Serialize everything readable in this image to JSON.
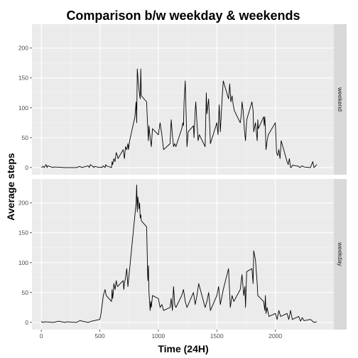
{
  "chart_data": {
    "type": "line",
    "title": "Comparison b/w weekday & weekends",
    "xlabel": "Time (24H)",
    "ylabel": "Average steps",
    "xlim": [
      -80,
      2500
    ],
    "ylim": [
      -12,
      240
    ],
    "x_ticks": [
      0,
      500,
      1000,
      1500,
      2000
    ],
    "y_ticks": [
      0,
      50,
      100,
      150,
      200
    ],
    "grid": true,
    "legend": "none",
    "line_color": "#000000",
    "panel_background": "#ebebeb",
    "strip_background": "#d9d9d9",
    "facets": [
      {
        "strip": "weekend",
        "x": [
          0,
          15,
          25,
          40,
          50,
          55,
          100,
          110,
          200,
          300,
          330,
          345,
          400,
          410,
          420,
          450,
          455,
          500,
          510,
          520,
          530,
          545,
          550,
          555,
          600,
          605,
          610,
          620,
          630,
          640,
          650,
          655,
          700,
          710,
          715,
          720,
          730,
          740,
          745,
          755,
          800,
          810,
          815,
          820,
          830,
          835,
          845,
          850,
          855,
          900,
          905,
          915,
          920,
          930,
          940,
          950,
          1000,
          1015,
          1030,
          1045,
          1100,
          1110,
          1120,
          1130,
          1140,
          1150,
          1200,
          1210,
          1215,
          1220,
          1230,
          1245,
          1255,
          1300,
          1305,
          1315,
          1320,
          1330,
          1340,
          1350,
          1400,
          1410,
          1415,
          1430,
          1445,
          1500,
          1510,
          1520,
          1530,
          1545,
          1555,
          1600,
          1610,
          1620,
          1630,
          1640,
          1650,
          1700,
          1710,
          1715,
          1725,
          1735,
          1745,
          1755,
          1800,
          1810,
          1815,
          1830,
          1845,
          1850,
          1855,
          1900,
          1905,
          1910,
          1915,
          1920,
          1930,
          1940,
          2000,
          2010,
          2020,
          2030,
          2040,
          2050,
          2100,
          2110,
          2120,
          2130,
          2140,
          2145,
          2200,
          2210,
          2230,
          2245,
          2300,
          2320,
          2330,
          2355
        ],
        "y": [
          0,
          2,
          0,
          5,
          0,
          3,
          0,
          1,
          0,
          0,
          2,
          0,
          3,
          0,
          5,
          0,
          2,
          0,
          1,
          0,
          3,
          0,
          5,
          3,
          0,
          10,
          5,
          15,
          10,
          25,
          20,
          15,
          30,
          15,
          25,
          35,
          30,
          40,
          30,
          45,
          85,
          110,
          75,
          165,
          140,
          130,
          115,
          165,
          120,
          110,
          85,
          45,
          70,
          50,
          35,
          65,
          55,
          75,
          55,
          30,
          40,
          80,
          55,
          35,
          40,
          35,
          65,
          75,
          70,
          110,
          145,
          35,
          60,
          70,
          50,
          95,
          110,
          75,
          45,
          55,
          35,
          125,
          90,
          115,
          40,
          75,
          55,
          105,
          60,
          115,
          145,
          115,
          140,
          110,
          120,
          105,
          95,
          75,
          90,
          110,
          95,
          65,
          45,
          80,
          110,
          95,
          60,
          75,
          45,
          80,
          65,
          85,
          70,
          85,
          65,
          30,
          45,
          55,
          75,
          25,
          20,
          30,
          15,
          45,
          10,
          5,
          15,
          0,
          1,
          4,
          2,
          0,
          3,
          1,
          0,
          10,
          0,
          5
        ]
      },
      {
        "strip": "weekday",
        "x": [
          0,
          10,
          30,
          100,
          150,
          200,
          220,
          300,
          330,
          400,
          430,
          500,
          510,
          520,
          530,
          545,
          550,
          555,
          600,
          605,
          610,
          615,
          620,
          630,
          640,
          650,
          700,
          705,
          710,
          720,
          730,
          740,
          745,
          750,
          800,
          810,
          815,
          820,
          825,
          835,
          840,
          845,
          850,
          855,
          900,
          910,
          915,
          920,
          930,
          935,
          940,
          950,
          1000,
          1015,
          1030,
          1045,
          1100,
          1110,
          1120,
          1130,
          1140,
          1150,
          1200,
          1215,
          1230,
          1245,
          1300,
          1315,
          1330,
          1345,
          1400,
          1415,
          1430,
          1445,
          1500,
          1515,
          1530,
          1545,
          1555,
          1600,
          1615,
          1630,
          1645,
          1700,
          1715,
          1730,
          1740,
          1745,
          1755,
          1800,
          1810,
          1815,
          1830,
          1845,
          1850,
          1900,
          1910,
          1915,
          1920,
          1930,
          1945,
          2000,
          2015,
          2030,
          2045,
          2100,
          2115,
          2130,
          2145,
          2200,
          2215,
          2230,
          2245,
          2300,
          2330,
          2355
        ],
        "y": [
          2,
          0,
          1,
          0,
          2,
          0,
          1,
          0,
          3,
          0,
          2,
          5,
          15,
          30,
          45,
          55,
          50,
          45,
          35,
          55,
          40,
          50,
          65,
          55,
          70,
          60,
          70,
          55,
          65,
          75,
          90,
          60,
          70,
          80,
          180,
          200,
          230,
          185,
          210,
          190,
          200,
          175,
          180,
          170,
          160,
          70,
          95,
          50,
          20,
          35,
          25,
          45,
          40,
          25,
          30,
          20,
          25,
          40,
          20,
          60,
          30,
          25,
          45,
          55,
          35,
          25,
          50,
          30,
          45,
          65,
          25,
          35,
          50,
          20,
          45,
          60,
          30,
          45,
          55,
          90,
          25,
          45,
          35,
          55,
          80,
          45,
          60,
          25,
          85,
          90,
          65,
          120,
          105,
          65,
          45,
          35,
          20,
          45,
          15,
          25,
          10,
          15,
          5,
          20,
          10,
          15,
          5,
          20,
          5,
          10,
          2,
          8,
          3,
          5,
          0,
          1
        ]
      }
    ]
  }
}
